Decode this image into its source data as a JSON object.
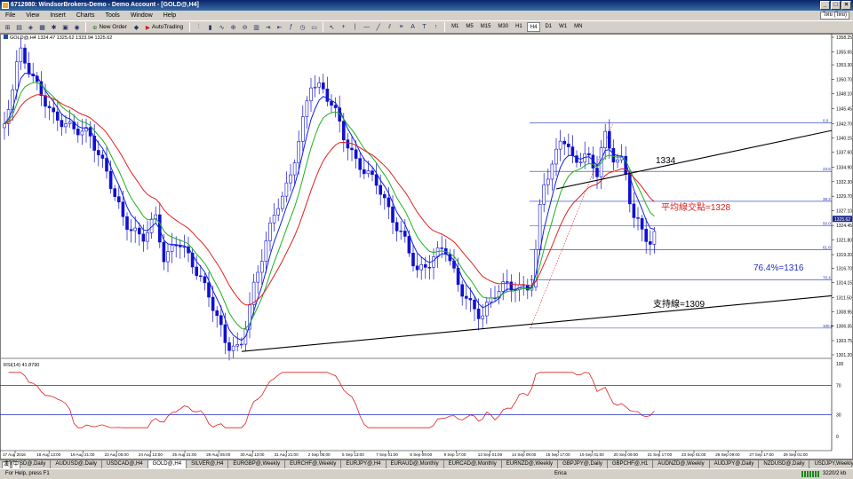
{
  "window": {
    "title": "6712980: WindsorBrokers-Demo - Demo Account - [GOLD@,H4]",
    "controls": [
      "_",
      "□",
      "×"
    ]
  },
  "menu": [
    "File",
    "View",
    "Insert",
    "Charts",
    "Tools",
    "Window",
    "Help"
  ],
  "language_box": "ไทย (ไทย)",
  "toolbar": {
    "new_order": "New Order",
    "autotrading": "AutoTrading",
    "timeframes": [
      "M1",
      "M5",
      "M15",
      "M30",
      "H1",
      "H4",
      "D1",
      "W1",
      "MN"
    ]
  },
  "chart": {
    "header": "GOLD@,H4  1324.47 1325.62 1323.94 1325.62",
    "rsi_header": "RSI(14) 41.8790",
    "price_labels": [
      "1358.25",
      "1355.65",
      "1353.30",
      "1350.70",
      "1348.10",
      "1345.45",
      "1342.70",
      "1340.15",
      "1337.60",
      "1334.90",
      "1332.30",
      "1329.70",
      "1327.10",
      "1324.45",
      "1321.80",
      "1319.20",
      "1316.70",
      "1314.15",
      "1311.50",
      "1308.95",
      "1306.35",
      "1303.75",
      "1301.20"
    ],
    "current_price": "1325.62",
    "rsi_labels": [
      "100",
      "70",
      "30",
      "0"
    ],
    "fib_labels": [
      "0.0",
      "23.6",
      "38.2",
      "50.0",
      "61.8",
      "76.4",
      "100.0"
    ],
    "time_labels": [
      "17 Aug 2016",
      "18 Aug 13:00",
      "19 Aug 21:00",
      "23 Aug 05:00",
      "24 Aug 13:00",
      "25 Aug 21:00",
      "29 Aug 05:00",
      "30 Aug 13:00",
      "31 Aug 21:00",
      "2 Sep 05:00",
      "5 Sep 13:00",
      "7 Sep 01:00",
      "8 Sep 09:00",
      "9 Sep 17:00",
      "13 Sep 01:00",
      "14 Sep 09:00",
      "15 Sep 17:00",
      "19 Sep 01:00",
      "20 Sep 09:00",
      "21 Sep 17:00",
      "23 Sep 01:00",
      "26 Sep 09:00",
      "27 Sep 17:00",
      "29 Sep 01:00"
    ],
    "annotations": {
      "resistance": "1334",
      "ma_cross": "平均線交點=1328",
      "fib_764": "76.4%=1316",
      "support": "支持線=1309"
    },
    "colors": {
      "candle": "#1010d0",
      "ma_fast": "#1020e0",
      "ma_mid": "#20b020",
      "ma_slow": "#e02020",
      "fib": "#2030c0",
      "rsi": "#e02020",
      "trend": "#000000",
      "annot_red": "#e02020",
      "annot_blue": "#2030c0"
    }
  },
  "symbol_tabs": [
    "GBPUSD@,Daily",
    "AUDUSD@,Daily",
    "USDCAD@,H4",
    "GOLD@,H4",
    "SILVER@,H4",
    "EURGBP@,Weekly",
    "EURCHF@,Weekly",
    "EURJPY@,H4",
    "EURAUD@,Monthly",
    "EURCAD@,Monthly",
    "EURNZD@,Weekly",
    "GBPJPY@,Daily",
    "GBPCHF@,H1",
    "AUDNZD@,Weekly",
    "AUDJPY@,Daily",
    "NZDUSD@,Daily",
    "USDJPY,Weekly",
    "GBPUSD@,Dai"
  ],
  "status": {
    "help": "For Help, press F1",
    "mode": "Erica",
    "conn": "3220/2 kb"
  },
  "ime": [
    "漢",
    "中"
  ]
}
